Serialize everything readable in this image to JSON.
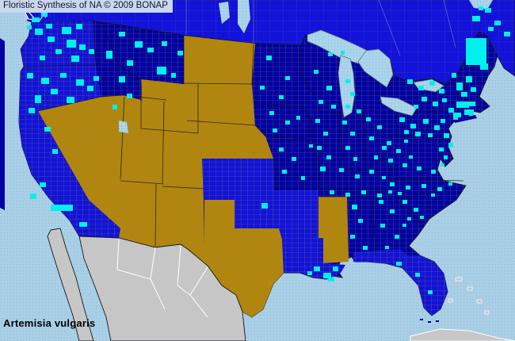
{
  "header": {
    "title": "Floristic Synthesis of NA © 2009 BONAP"
  },
  "footer": {
    "taxon_label": "Artemisia vulgaris"
  },
  "map": {
    "colors": {
      "ocean": "#a9cfe6",
      "lake": "#a9d4ea",
      "stipple_dot": "#7fa4c8",
      "navy": "#0000a3",
      "royal": "#1212d9",
      "gold": "#b3860b",
      "gray_land": "#c6c6c6",
      "record_cyan": "#00efef",
      "county_line": "#8a8455",
      "canada_line": "#7d8da6",
      "state_line": "#15151a",
      "white_coast": "#ffffff",
      "title_bg": "#c9d7f0",
      "title_text": "#14181f",
      "taxon_text": "#000000"
    },
    "region_fills": {
      "canada": "royal",
      "us_base": "navy",
      "wa_or": "royal",
      "california": "royal",
      "gold_west": "gold",
      "texas": "gold",
      "ks_ok": "royal",
      "ar_la": "royal",
      "mississippi": "gold",
      "florida": "royal",
      "long_island": "navy",
      "coast_strip": "navy",
      "vancouver_island": "royal",
      "mexico": "gray_land",
      "baja": "gray_land",
      "cuba": "gray_land",
      "bahamas": "gray_land",
      "florida_keys": "navy"
    },
    "county_records": [
      [
        44,
        36,
        10,
        8
      ],
      [
        58,
        30,
        8,
        6
      ],
      [
        78,
        34,
        12,
        9
      ],
      [
        96,
        30,
        8,
        7
      ],
      [
        60,
        46,
        9,
        7
      ],
      [
        84,
        50,
        12,
        10
      ],
      [
        100,
        56,
        8,
        7
      ],
      [
        70,
        62,
        8,
        6
      ],
      [
        50,
        70,
        7,
        6
      ],
      [
        90,
        70,
        10,
        8
      ],
      [
        112,
        62,
        7,
        6
      ],
      [
        34,
        92,
        8,
        7
      ],
      [
        52,
        98,
        10,
        8
      ],
      [
        76,
        92,
        8,
        6
      ],
      [
        96,
        100,
        10,
        8
      ],
      [
        64,
        112,
        9,
        7
      ],
      [
        44,
        120,
        8,
        10
      ],
      [
        84,
        122,
        10,
        8
      ],
      [
        110,
        108,
        8,
        7
      ],
      [
        36,
        136,
        8,
        7
      ],
      [
        118,
        96,
        7,
        6
      ],
      [
        134,
        64,
        8,
        10
      ],
      [
        150,
        96,
        8,
        8
      ],
      [
        160,
        118,
        7,
        6
      ],
      [
        142,
        132,
        6,
        6
      ],
      [
        150,
        40,
        8,
        6
      ],
      [
        170,
        52,
        10,
        8
      ],
      [
        186,
        60,
        8,
        6
      ],
      [
        204,
        52,
        7,
        6
      ],
      [
        160,
        76,
        8,
        7
      ],
      [
        198,
        84,
        12,
        10
      ],
      [
        224,
        64,
        7,
        6
      ],
      [
        216,
        92,
        6,
        6
      ],
      [
        56,
        160,
        8,
        6
      ],
      [
        66,
        188,
        7,
        6
      ],
      [
        50,
        230,
        8,
        6
      ],
      [
        38,
        244,
        8,
        7
      ],
      [
        64,
        258,
        28,
        8
      ],
      [
        100,
        280,
        10,
        6
      ],
      [
        330,
        256,
        8,
        7
      ],
      [
        396,
        336,
        8,
        6
      ],
      [
        408,
        344,
        10,
        7
      ],
      [
        420,
        336,
        7,
        6
      ],
      [
        414,
        350,
        8,
        5
      ],
      [
        388,
        342,
        6,
        5
      ],
      [
        336,
        70,
        7,
        6
      ],
      [
        360,
        96,
        6,
        5
      ],
      [
        328,
        108,
        6,
        5
      ],
      [
        352,
        120,
        6,
        5
      ],
      [
        396,
        88,
        6,
        5
      ],
      [
        412,
        108,
        7,
        6
      ],
      [
        402,
        126,
        6,
        5
      ],
      [
        418,
        132,
        6,
        5
      ],
      [
        414,
        66,
        6,
        5
      ],
      [
        430,
        64,
        5,
        5
      ],
      [
        436,
        100,
        6,
        5
      ],
      [
        442,
        116,
        6,
        5
      ],
      [
        436,
        132,
        6,
        5
      ],
      [
        450,
        138,
        6,
        5
      ],
      [
        340,
        140,
        6,
        5
      ],
      [
        360,
        152,
        6,
        5
      ],
      [
        344,
        162,
        6,
        5
      ],
      [
        374,
        146,
        5,
        5
      ],
      [
        352,
        186,
        6,
        5
      ],
      [
        368,
        198,
        6,
        5
      ],
      [
        356,
        214,
        6,
        5
      ],
      [
        380,
        222,
        5,
        5
      ],
      [
        390,
        182,
        5,
        4
      ],
      [
        398,
        150,
        6,
        5
      ],
      [
        408,
        166,
        6,
        5
      ],
      [
        400,
        184,
        6,
        5
      ],
      [
        412,
        196,
        6,
        5
      ],
      [
        404,
        210,
        7,
        6
      ],
      [
        432,
        152,
        6,
        5
      ],
      [
        442,
        166,
        6,
        5
      ],
      [
        436,
        184,
        6,
        5
      ],
      [
        446,
        198,
        5,
        5
      ],
      [
        462,
        148,
        6,
        5
      ],
      [
        476,
        158,
        6,
        5
      ],
      [
        466,
        172,
        6,
        5
      ],
      [
        482,
        184,
        6,
        5
      ],
      [
        472,
        196,
        5,
        5
      ],
      [
        428,
        212,
        6,
        5
      ],
      [
        448,
        220,
        6,
        5
      ],
      [
        466,
        214,
        6,
        5
      ],
      [
        482,
        222,
        5,
        4
      ],
      [
        416,
        240,
        6,
        5
      ],
      [
        436,
        243,
        6,
        5
      ],
      [
        456,
        240,
        6,
        5
      ],
      [
        476,
        244,
        6,
        5
      ],
      [
        490,
        240,
        5,
        4
      ],
      [
        444,
        258,
        7,
        6
      ],
      [
        452,
        276,
        6,
        5
      ],
      [
        442,
        296,
        6,
        5
      ],
      [
        458,
        310,
        6,
        5
      ],
      [
        478,
        252,
        6,
        5
      ],
      [
        492,
        264,
        6,
        5
      ],
      [
        480,
        282,
        6,
        5
      ],
      [
        498,
        296,
        6,
        5
      ],
      [
        508,
        282,
        5,
        4
      ],
      [
        486,
        310,
        5,
        4
      ],
      [
        508,
        252,
        6,
        5
      ],
      [
        522,
        262,
        6,
        5
      ],
      [
        514,
        274,
        5,
        4
      ],
      [
        530,
        272,
        5,
        4
      ],
      [
        492,
        230,
        6,
        5
      ],
      [
        512,
        234,
        6,
        5
      ],
      [
        532,
        232,
        6,
        5
      ],
      [
        552,
        236,
        6,
        5
      ],
      [
        566,
        230,
        5,
        4
      ],
      [
        502,
        242,
        5,
        4
      ],
      [
        544,
        244,
        5,
        4
      ],
      [
        490,
        200,
        6,
        5
      ],
      [
        508,
        206,
        6,
        5
      ],
      [
        526,
        210,
        6,
        5
      ],
      [
        544,
        214,
        6,
        5
      ],
      [
        556,
        206,
        5,
        4
      ],
      [
        516,
        196,
        5,
        4
      ],
      [
        488,
        178,
        6,
        5
      ],
      [
        500,
        188,
        6,
        5
      ],
      [
        510,
        176,
        5,
        4
      ],
      [
        500,
        330,
        7,
        5
      ],
      [
        524,
        344,
        6,
        5
      ],
      [
        540,
        366,
        6,
        5
      ],
      [
        504,
        148,
        7,
        6
      ],
      [
        518,
        156,
        7,
        6
      ],
      [
        534,
        150,
        7,
        6
      ],
      [
        548,
        158,
        7,
        6
      ],
      [
        524,
        166,
        7,
        6
      ],
      [
        540,
        168,
        6,
        5
      ],
      [
        556,
        150,
        6,
        5
      ],
      [
        510,
        164,
        6,
        5
      ],
      [
        514,
        100,
        7,
        6
      ],
      [
        528,
        108,
        7,
        6
      ],
      [
        542,
        102,
        7,
        6
      ],
      [
        554,
        112,
        7,
        6
      ],
      [
        532,
        122,
        7,
        6
      ],
      [
        546,
        128,
        7,
        6
      ],
      [
        558,
        124,
        6,
        5
      ],
      [
        522,
        132,
        6,
        5
      ],
      [
        566,
        136,
        7,
        6
      ],
      [
        572,
        146,
        6,
        5
      ],
      [
        560,
        168,
        7,
        6
      ],
      [
        566,
        180,
        6,
        6
      ],
      [
        554,
        186,
        6,
        5
      ],
      [
        560,
        196,
        5,
        5
      ],
      [
        576,
        128,
        16,
        8
      ],
      [
        586,
        138,
        12,
        7
      ],
      [
        572,
        142,
        10,
        6
      ],
      [
        592,
        128,
        8,
        6
      ],
      [
        576,
        104,
        8,
        10
      ],
      [
        588,
        96,
        8,
        8
      ],
      [
        582,
        116,
        8,
        6
      ],
      [
        594,
        110,
        7,
        6
      ],
      [
        570,
        92,
        6,
        6
      ],
      [
        588,
        48,
        26,
        34
      ],
      [
        606,
        80,
        10,
        8
      ],
      [
        40,
        22,
        10,
        6
      ],
      [
        52,
        16,
        8,
        5
      ],
      [
        34,
        32,
        6,
        5
      ],
      [
        596,
        20,
        10,
        7
      ],
      [
        612,
        10,
        8,
        6
      ],
      [
        624,
        26,
        8,
        6
      ],
      [
        636,
        40,
        8,
        6
      ],
      [
        616,
        34,
        7,
        5
      ],
      [
        604,
        8,
        6,
        5
      ]
    ]
  }
}
